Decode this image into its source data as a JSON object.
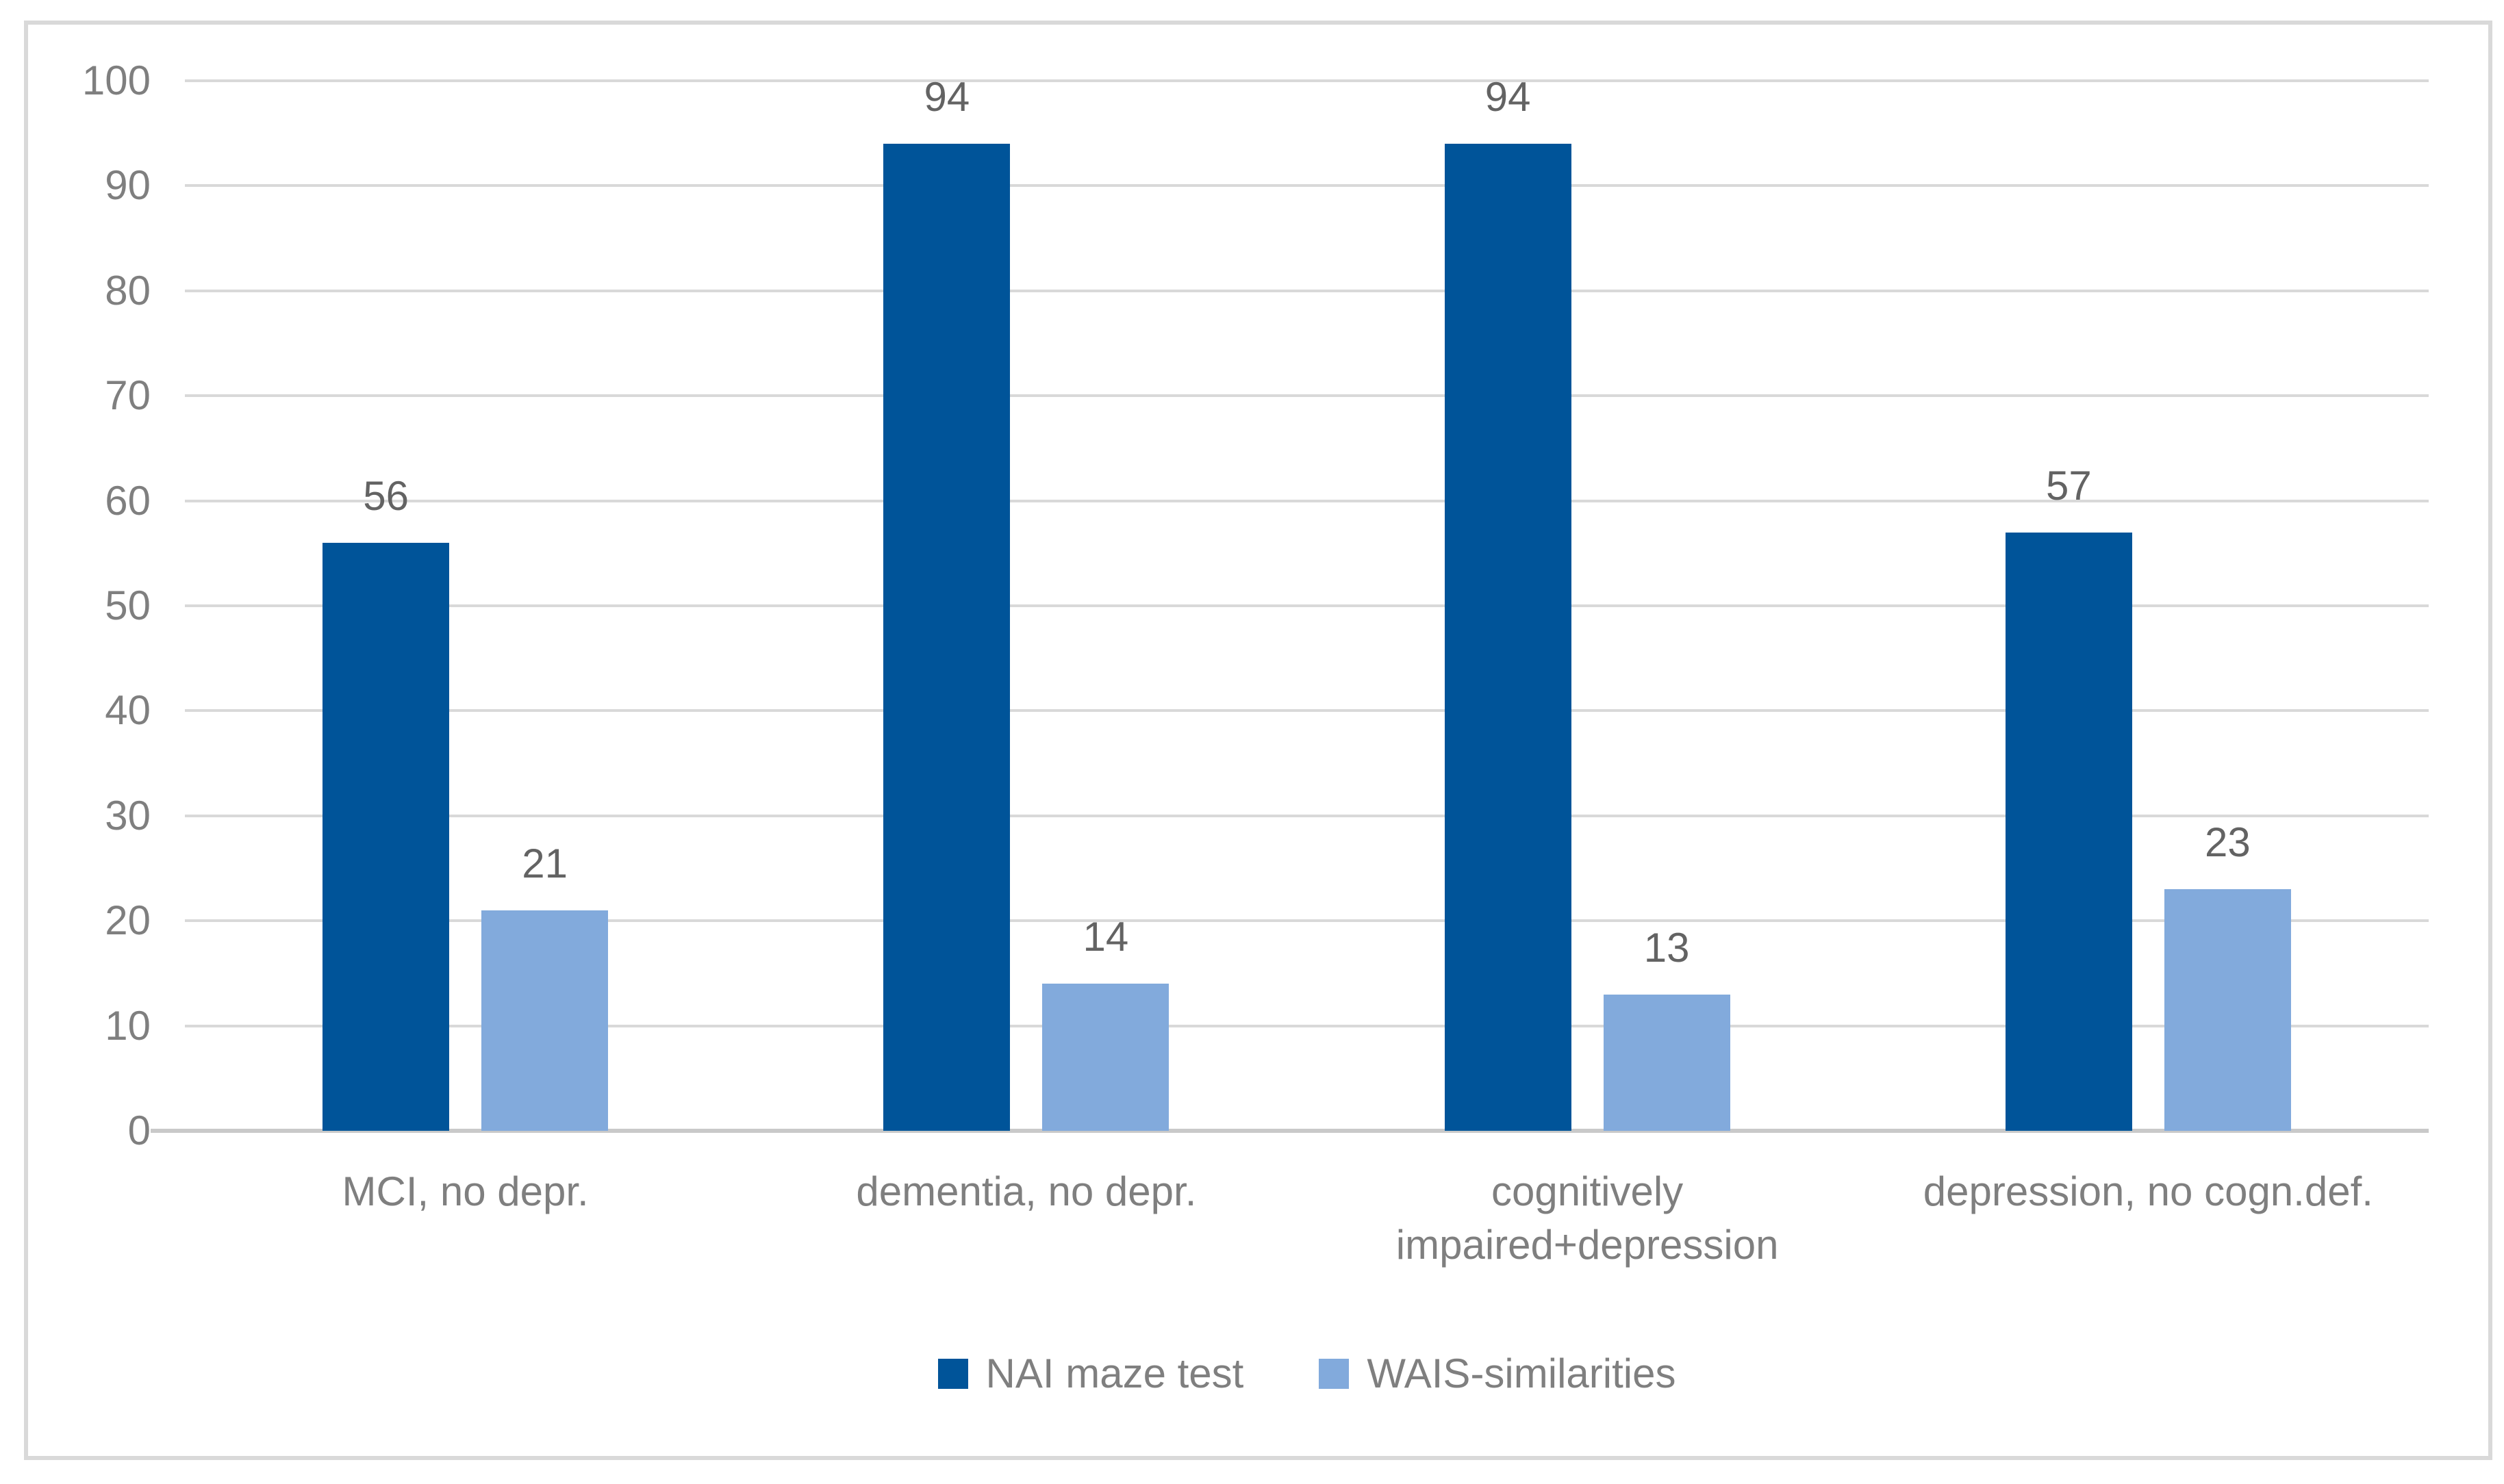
{
  "chart_data": {
    "type": "bar",
    "title": "",
    "xlabel": "",
    "ylabel": "",
    "categories": [
      "MCI, no depr.",
      "dementia, no depr.",
      "cognitively impaired+depression",
      "depression, no cogn.def."
    ],
    "series": [
      {
        "name": "NAI maze test",
        "color": "#005499",
        "values": [
          56,
          94,
          94,
          57
        ]
      },
      {
        "name": "WAIS-similarities",
        "color": "#82AADC",
        "values": [
          21,
          14,
          13,
          23
        ]
      }
    ],
    "data_labels": [
      [
        "56",
        "94",
        "94",
        "57"
      ],
      [
        "21",
        "14",
        "13",
        "23"
      ]
    ],
    "ylim": [
      0,
      100
    ],
    "yticks": [
      0,
      10,
      20,
      30,
      40,
      50,
      60,
      70,
      80,
      90,
      100
    ],
    "grid": "horizontal",
    "legend_position": "bottom"
  },
  "colors": {
    "background": "#FFFFFF",
    "frame_border": "#D9D9D9",
    "gridline": "#D9D9D9",
    "axis_line": "#C9C9C9",
    "tick_text": "#7F7F7F",
    "category_text": "#7F7F7F",
    "legend_text": "#7F7F7F",
    "data_label_text": "#636363",
    "series_dark_blue": "#005499",
    "series_light_blue": "#82AADC"
  }
}
